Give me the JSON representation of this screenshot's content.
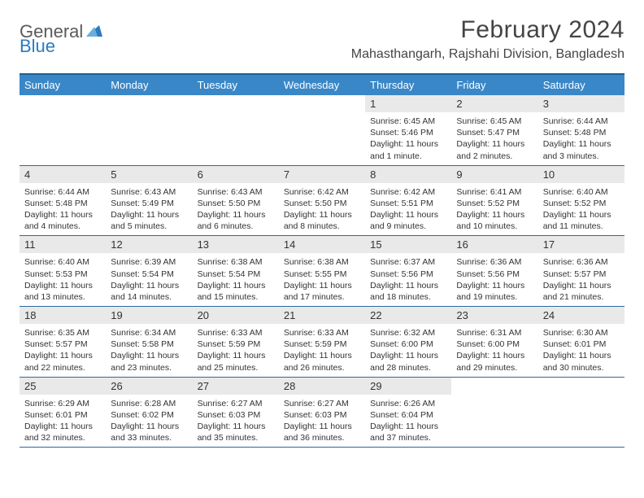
{
  "brand": {
    "part1": "General",
    "part2": "Blue"
  },
  "header": {
    "month": "February 2024",
    "location": "Mahasthangarh, Rajshahi Division, Bangladesh"
  },
  "colors": {
    "header_bg": "#3a87c7",
    "header_border": "#1f5f8f",
    "row_border": "#2d6a9e",
    "daynum_bg": "#e9e9e9",
    "text": "#333333",
    "title": "#444444",
    "logo_gray": "#5a5a5a",
    "logo_blue": "#2b7bbf"
  },
  "dayNames": [
    "Sunday",
    "Monday",
    "Tuesday",
    "Wednesday",
    "Thursday",
    "Friday",
    "Saturday"
  ],
  "weeks": [
    [
      {
        "n": "",
        "lines": []
      },
      {
        "n": "",
        "lines": []
      },
      {
        "n": "",
        "lines": []
      },
      {
        "n": "",
        "lines": []
      },
      {
        "n": "1",
        "lines": [
          "Sunrise: 6:45 AM",
          "Sunset: 5:46 PM",
          "Daylight: 11 hours and 1 minute."
        ]
      },
      {
        "n": "2",
        "lines": [
          "Sunrise: 6:45 AM",
          "Sunset: 5:47 PM",
          "Daylight: 11 hours and 2 minutes."
        ]
      },
      {
        "n": "3",
        "lines": [
          "Sunrise: 6:44 AM",
          "Sunset: 5:48 PM",
          "Daylight: 11 hours and 3 minutes."
        ]
      }
    ],
    [
      {
        "n": "4",
        "lines": [
          "Sunrise: 6:44 AM",
          "Sunset: 5:48 PM",
          "Daylight: 11 hours and 4 minutes."
        ]
      },
      {
        "n": "5",
        "lines": [
          "Sunrise: 6:43 AM",
          "Sunset: 5:49 PM",
          "Daylight: 11 hours and 5 minutes."
        ]
      },
      {
        "n": "6",
        "lines": [
          "Sunrise: 6:43 AM",
          "Sunset: 5:50 PM",
          "Daylight: 11 hours and 6 minutes."
        ]
      },
      {
        "n": "7",
        "lines": [
          "Sunrise: 6:42 AM",
          "Sunset: 5:50 PM",
          "Daylight: 11 hours and 8 minutes."
        ]
      },
      {
        "n": "8",
        "lines": [
          "Sunrise: 6:42 AM",
          "Sunset: 5:51 PM",
          "Daylight: 11 hours and 9 minutes."
        ]
      },
      {
        "n": "9",
        "lines": [
          "Sunrise: 6:41 AM",
          "Sunset: 5:52 PM",
          "Daylight: 11 hours and 10 minutes."
        ]
      },
      {
        "n": "10",
        "lines": [
          "Sunrise: 6:40 AM",
          "Sunset: 5:52 PM",
          "Daylight: 11 hours and 11 minutes."
        ]
      }
    ],
    [
      {
        "n": "11",
        "lines": [
          "Sunrise: 6:40 AM",
          "Sunset: 5:53 PM",
          "Daylight: 11 hours and 13 minutes."
        ]
      },
      {
        "n": "12",
        "lines": [
          "Sunrise: 6:39 AM",
          "Sunset: 5:54 PM",
          "Daylight: 11 hours and 14 minutes."
        ]
      },
      {
        "n": "13",
        "lines": [
          "Sunrise: 6:38 AM",
          "Sunset: 5:54 PM",
          "Daylight: 11 hours and 15 minutes."
        ]
      },
      {
        "n": "14",
        "lines": [
          "Sunrise: 6:38 AM",
          "Sunset: 5:55 PM",
          "Daylight: 11 hours and 17 minutes."
        ]
      },
      {
        "n": "15",
        "lines": [
          "Sunrise: 6:37 AM",
          "Sunset: 5:56 PM",
          "Daylight: 11 hours and 18 minutes."
        ]
      },
      {
        "n": "16",
        "lines": [
          "Sunrise: 6:36 AM",
          "Sunset: 5:56 PM",
          "Daylight: 11 hours and 19 minutes."
        ]
      },
      {
        "n": "17",
        "lines": [
          "Sunrise: 6:36 AM",
          "Sunset: 5:57 PM",
          "Daylight: 11 hours and 21 minutes."
        ]
      }
    ],
    [
      {
        "n": "18",
        "lines": [
          "Sunrise: 6:35 AM",
          "Sunset: 5:57 PM",
          "Daylight: 11 hours and 22 minutes."
        ]
      },
      {
        "n": "19",
        "lines": [
          "Sunrise: 6:34 AM",
          "Sunset: 5:58 PM",
          "Daylight: 11 hours and 23 minutes."
        ]
      },
      {
        "n": "20",
        "lines": [
          "Sunrise: 6:33 AM",
          "Sunset: 5:59 PM",
          "Daylight: 11 hours and 25 minutes."
        ]
      },
      {
        "n": "21",
        "lines": [
          "Sunrise: 6:33 AM",
          "Sunset: 5:59 PM",
          "Daylight: 11 hours and 26 minutes."
        ]
      },
      {
        "n": "22",
        "lines": [
          "Sunrise: 6:32 AM",
          "Sunset: 6:00 PM",
          "Daylight: 11 hours and 28 minutes."
        ]
      },
      {
        "n": "23",
        "lines": [
          "Sunrise: 6:31 AM",
          "Sunset: 6:00 PM",
          "Daylight: 11 hours and 29 minutes."
        ]
      },
      {
        "n": "24",
        "lines": [
          "Sunrise: 6:30 AM",
          "Sunset: 6:01 PM",
          "Daylight: 11 hours and 30 minutes."
        ]
      }
    ],
    [
      {
        "n": "25",
        "lines": [
          "Sunrise: 6:29 AM",
          "Sunset: 6:01 PM",
          "Daylight: 11 hours and 32 minutes."
        ]
      },
      {
        "n": "26",
        "lines": [
          "Sunrise: 6:28 AM",
          "Sunset: 6:02 PM",
          "Daylight: 11 hours and 33 minutes."
        ]
      },
      {
        "n": "27",
        "lines": [
          "Sunrise: 6:27 AM",
          "Sunset: 6:03 PM",
          "Daylight: 11 hours and 35 minutes."
        ]
      },
      {
        "n": "28",
        "lines": [
          "Sunrise: 6:27 AM",
          "Sunset: 6:03 PM",
          "Daylight: 11 hours and 36 minutes."
        ]
      },
      {
        "n": "29",
        "lines": [
          "Sunrise: 6:26 AM",
          "Sunset: 6:04 PM",
          "Daylight: 11 hours and 37 minutes."
        ]
      },
      {
        "n": "",
        "lines": []
      },
      {
        "n": "",
        "lines": []
      }
    ]
  ]
}
